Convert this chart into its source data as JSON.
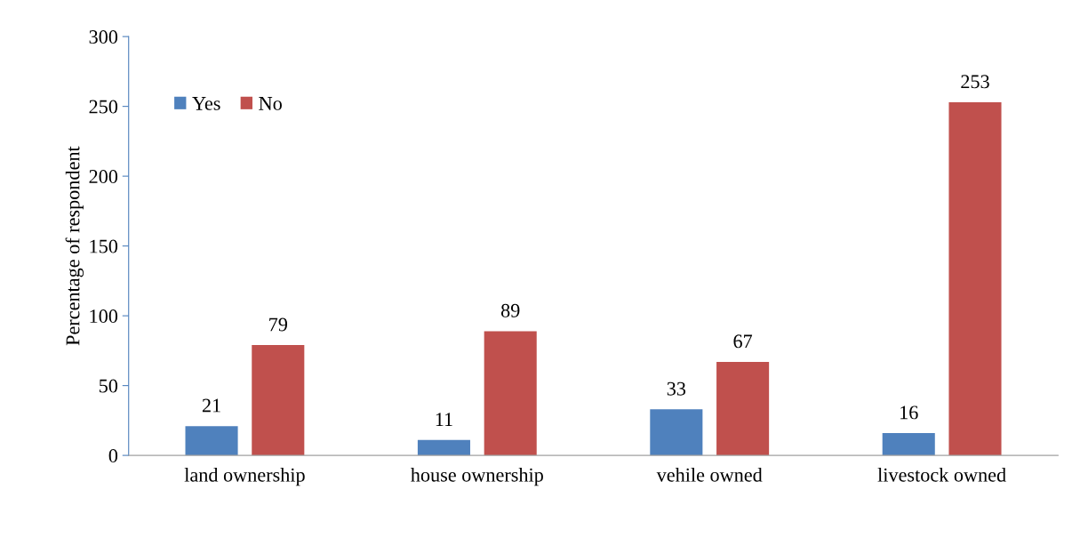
{
  "chart_data": {
    "type": "bar",
    "ylabel": "Percentage of respondent",
    "categories": [
      "land ownership",
      "house ownership",
      "vehile owned",
      "livestock owned"
    ],
    "series": [
      {
        "name": "Yes",
        "color": "#4f81bd",
        "values": [
          21,
          11,
          33,
          16
        ]
      },
      {
        "name": "No",
        "color": "#c0504d",
        "values": [
          79,
          89,
          67,
          253
        ]
      }
    ],
    "ylim": [
      0,
      300
    ],
    "yticks": [
      0,
      50,
      100,
      150,
      200,
      250,
      300
    ],
    "data_labels": true,
    "grid": false,
    "legend": "top left"
  }
}
